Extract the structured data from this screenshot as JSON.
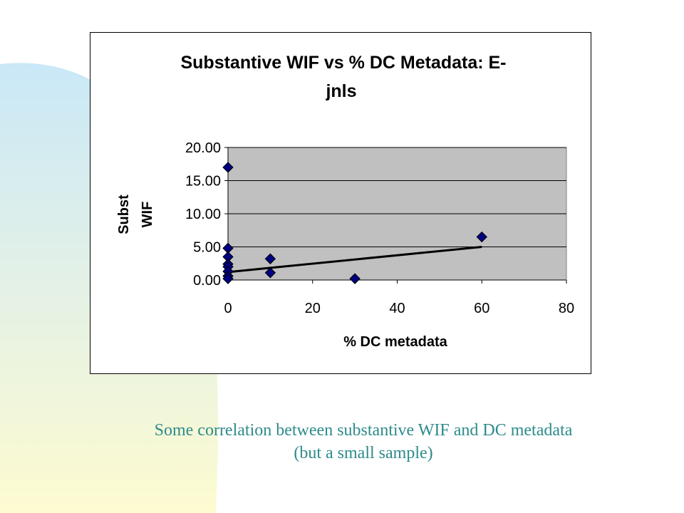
{
  "background": {
    "left_color": "#c9e8f7",
    "bottom_color": "#fdfbd0"
  },
  "colors": {
    "accent": "#2e8b8b",
    "marker": "#000080",
    "plot_area": "#c0c0c0"
  },
  "chart_data": {
    "type": "scatter",
    "title": "Substantive WIF vs % DC Metadata: E-jnls",
    "title_lines": [
      "Substantive WIF vs % DC Metadata: E-",
      "jnls"
    ],
    "xlabel": "% DC metadata",
    "ylabel_lines": [
      "Subst",
      "WIF"
    ],
    "xlim": [
      0,
      80
    ],
    "ylim": [
      0,
      20
    ],
    "x_ticks": [
      0,
      20,
      40,
      60,
      80
    ],
    "x_tick_labels": [
      "0",
      "20",
      "40",
      "60",
      "80"
    ],
    "y_ticks": [
      0,
      5,
      10,
      15,
      20
    ],
    "y_tick_labels": [
      "0.00",
      "5.00",
      "10.00",
      "15.00",
      "20.00"
    ],
    "grid": "horizontal",
    "legend": "none",
    "series": [
      {
        "marker": "diamond",
        "points": [
          [
            0,
            17.0
          ],
          [
            0,
            4.8
          ],
          [
            0,
            3.5
          ],
          [
            0,
            2.4
          ],
          [
            0,
            2.0
          ],
          [
            0,
            1.3
          ],
          [
            0,
            0.6
          ],
          [
            0,
            0.2
          ],
          [
            10,
            3.2
          ],
          [
            10,
            1.1
          ],
          [
            30,
            0.2
          ],
          [
            60,
            6.5
          ]
        ]
      }
    ],
    "trendline": {
      "type": "linear",
      "from": [
        0,
        1.2
      ],
      "to": [
        60,
        5.0
      ]
    }
  },
  "caption": {
    "line1": "Some correlation between substantive WIF and DC metadata",
    "line2": "(but a small sample)"
  }
}
